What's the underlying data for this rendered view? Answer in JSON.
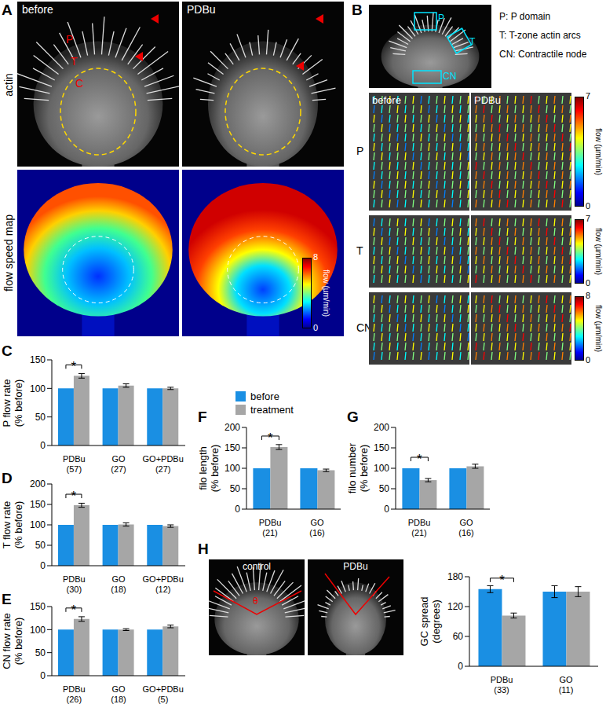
{
  "figure": {
    "A": {
      "panel": "A",
      "row_labels": [
        "actin",
        "flow speed map"
      ],
      "column_titles": [
        "before",
        "PDBu"
      ],
      "region_labels": [
        "P",
        "T",
        "C"
      ],
      "colorbar": {
        "range": [
          0,
          8
        ],
        "ticks": [
          0,
          8
        ],
        "label": "flow (µm/min)"
      }
    },
    "B": {
      "panel": "B",
      "region_labels": [
        "P",
        "T",
        "CN"
      ],
      "key": [
        "P: P domain",
        "T: T-zone actin arcs",
        "CN: Contractile node"
      ],
      "column_titles": [
        "before",
        "PDBu"
      ],
      "rows": [
        {
          "label": "P",
          "colorbar": {
            "range": [
              0,
              7
            ],
            "ticks": [
              0,
              7
            ],
            "label": "flow (µm/min)"
          }
        },
        {
          "label": "T",
          "colorbar": {
            "range": [
              0,
              7
            ],
            "ticks": [
              0,
              7
            ],
            "label": "flow (µm/min)"
          }
        },
        {
          "label": "CN",
          "colorbar": {
            "range": [
              0,
              8
            ],
            "ticks": [
              0,
              8
            ],
            "label": "flow (µm/min)"
          }
        }
      ]
    },
    "H": {
      "image_titles": [
        "control",
        "PDBu"
      ],
      "angle_symbol": "θ"
    }
  },
  "chart_data": [
    {
      "panel": "C",
      "type": "bar",
      "categories": [
        "PDBu",
        "GO",
        "GO+PDBu"
      ],
      "sample_sizes": [
        "(57)",
        "(27)",
        "(27)"
      ],
      "ylabel": [
        "P flow rate",
        "(% before)"
      ],
      "ylim": [
        0,
        150
      ],
      "yticks": [
        0,
        50,
        100,
        150
      ],
      "series": [
        {
          "name": "before",
          "color": "#1a8fe3",
          "values": [
            100,
            100,
            100
          ]
        },
        {
          "name": "treatment",
          "color": "#a6a6a6",
          "values": [
            122,
            105,
            100
          ],
          "errors": [
            4,
            3,
            2
          ]
        }
      ],
      "annotations": [
        {
          "category": "PDBu",
          "text": "*"
        }
      ]
    },
    {
      "panel": "D",
      "type": "bar",
      "categories": [
        "PDBu",
        "GO",
        "GO+PDBu"
      ],
      "sample_sizes": [
        "(30)",
        "(18)",
        "(12)"
      ],
      "ylabel": [
        "T flow rate",
        "(% before)"
      ],
      "ylim": [
        0,
        200
      ],
      "yticks": [
        0,
        50,
        100,
        150,
        200
      ],
      "series": [
        {
          "name": "before",
          "color": "#1a8fe3",
          "values": [
            100,
            100,
            100
          ]
        },
        {
          "name": "treatment",
          "color": "#a6a6a6",
          "values": [
            148,
            101,
            97
          ],
          "errors": [
            5,
            4,
            3
          ]
        }
      ],
      "annotations": [
        {
          "category": "PDBu",
          "text": "*"
        }
      ]
    },
    {
      "panel": "E",
      "type": "bar",
      "categories": [
        "PDBu",
        "GO",
        "GO+PDBu"
      ],
      "sample_sizes": [
        "(26)",
        "(18)",
        "(5)"
      ],
      "ylabel": [
        "CN flow rate",
        "(% before)"
      ],
      "ylim": [
        0,
        150
      ],
      "yticks": [
        0,
        50,
        100,
        150
      ],
      "series": [
        {
          "name": "before",
          "color": "#1a8fe3",
          "values": [
            100,
            100,
            100
          ]
        },
        {
          "name": "treatment",
          "color": "#a6a6a6",
          "values": [
            123,
            100,
            107
          ],
          "errors": [
            5,
            2,
            3
          ]
        }
      ],
      "annotations": [
        {
          "category": "PDBu",
          "text": "*"
        }
      ]
    },
    {
      "panel": "F",
      "type": "bar",
      "categories": [
        "PDBu",
        "GO"
      ],
      "sample_sizes": [
        "(21)",
        "(16)"
      ],
      "ylabel": [
        "filo length",
        "(% before)"
      ],
      "ylim": [
        0,
        200
      ],
      "yticks": [
        0,
        50,
        100,
        150,
        200
      ],
      "series": [
        {
          "name": "before",
          "color": "#1a8fe3",
          "values": [
            100,
            100
          ]
        },
        {
          "name": "treatment",
          "color": "#a6a6a6",
          "values": [
            152,
            95
          ],
          "errors": [
            6,
            3
          ]
        }
      ],
      "annotations": [
        {
          "category": "PDBu",
          "text": "*"
        }
      ]
    },
    {
      "panel": "G",
      "type": "bar",
      "categories": [
        "PDBu",
        "GO"
      ],
      "sample_sizes": [
        "(21)",
        "(16)"
      ],
      "ylabel": [
        "filo number",
        "(% before)"
      ],
      "ylim": [
        0,
        200
      ],
      "yticks": [
        0,
        50,
        100,
        150,
        200
      ],
      "series": [
        {
          "name": "before",
          "color": "#1a8fe3",
          "values": [
            100,
            100
          ]
        },
        {
          "name": "treatment",
          "color": "#a6a6a6",
          "values": [
            71,
            105
          ],
          "errors": [
            4,
            5
          ]
        }
      ],
      "annotations": [
        {
          "category": "PDBu",
          "text": "*"
        }
      ]
    },
    {
      "panel": "H",
      "type": "bar",
      "categories": [
        "PDBu",
        "GO"
      ],
      "sample_sizes": [
        "(33)",
        "(11)"
      ],
      "ylabel": [
        "GC spread",
        "(degrees)"
      ],
      "ylim": [
        0,
        180
      ],
      "yticks": [
        0,
        60,
        120,
        180
      ],
      "series": [
        {
          "name": "before",
          "color": "#1a8fe3",
          "values": [
            155,
            150
          ],
          "errors": [
            7,
            12
          ]
        },
        {
          "name": "treatment",
          "color": "#a6a6a6",
          "values": [
            102,
            150
          ],
          "errors": [
            5,
            10
          ]
        }
      ],
      "annotations": [
        {
          "category": "PDBu",
          "text": "*"
        }
      ]
    }
  ]
}
